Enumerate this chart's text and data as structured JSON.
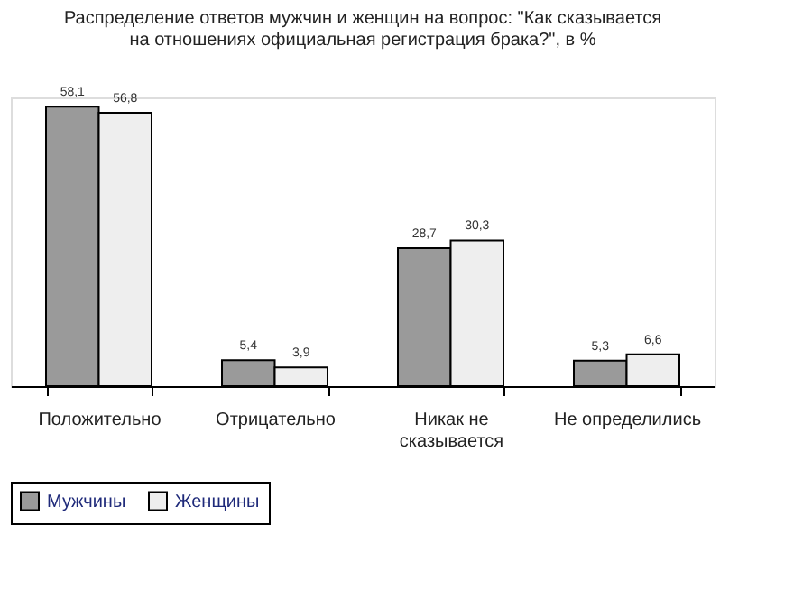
{
  "chart_data": {
    "type": "bar",
    "title": "Распределение ответов мужчин и женщин на вопрос: \"Как сказывается\nна отношениях официальная регистрация брака?\", в %",
    "categories": [
      "Положительно",
      "Отрицательно",
      "Никак не\nсказывается",
      "Не определились"
    ],
    "series": [
      {
        "name": "Мужчины",
        "color": "#9a9a9a",
        "values": [
          58.1,
          5.4,
          28.7,
          5.3
        ],
        "value_labels": [
          "58,1",
          "5,4",
          "28,7",
          "5,3"
        ]
      },
      {
        "name": "Женщины",
        "color": "#eeeeee",
        "values": [
          56.8,
          3.9,
          30.3,
          6.6
        ],
        "value_labels": [
          "56,8",
          "3,9",
          "30,3",
          "6,6"
        ]
      }
    ],
    "legend": "bottom"
  }
}
